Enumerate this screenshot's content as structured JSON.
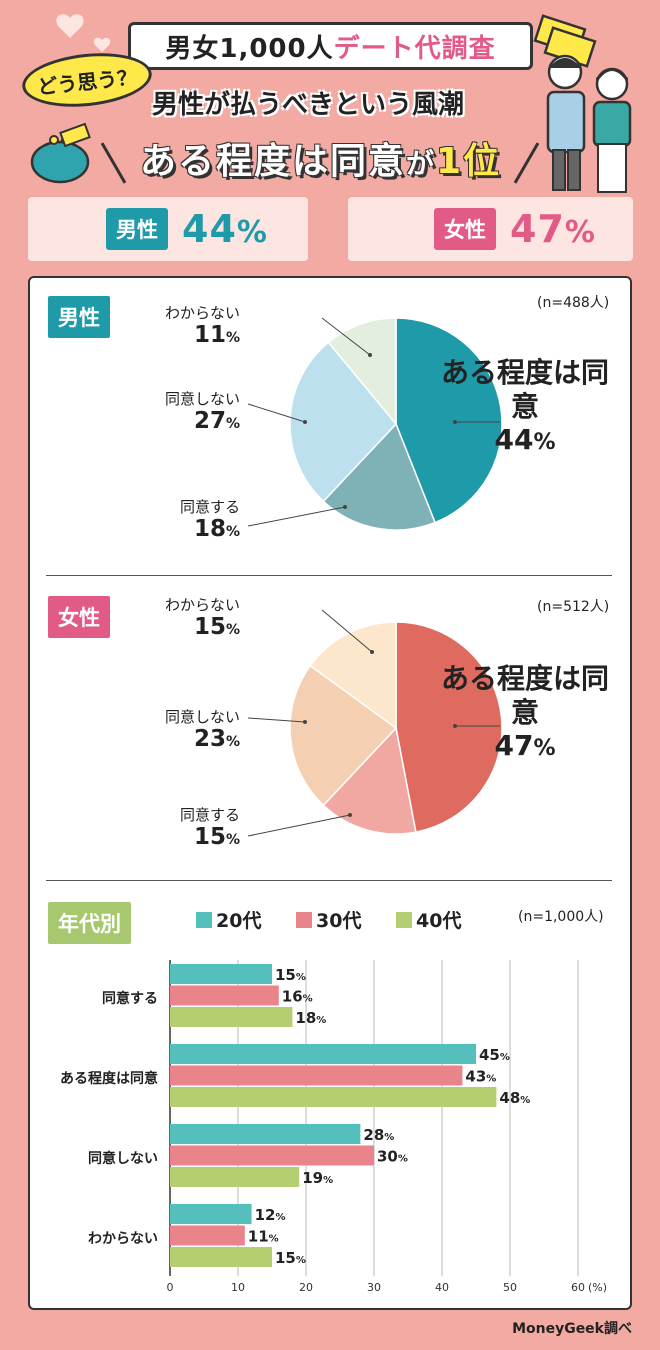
{
  "header": {
    "title_a": "男女1,000人",
    "title_b": "デート代調査",
    "bubble": "どう思う？",
    "subtitle": "男性が払うべきという風潮",
    "headline_a": "ある程度は同意",
    "headline_b": "が",
    "headline_c": "1位"
  },
  "summary": {
    "male_label": "男性",
    "male_pct": "44",
    "male_unit": "%",
    "female_label": "女性",
    "female_pct": "47",
    "female_unit": "%"
  },
  "chart_data": [
    {
      "type": "pie",
      "title": "男性",
      "n_label": "(n=488人)",
      "slices": [
        {
          "label": "ある程度は同意",
          "value": 44,
          "color": "#1e9aa9"
        },
        {
          "label": "同意する",
          "value": 18,
          "color": "#7fb2b7"
        },
        {
          "label": "同意しない",
          "value": 27,
          "color": "#bde0ee"
        },
        {
          "label": "わからない",
          "value": 11,
          "color": "#e4eede"
        }
      ]
    },
    {
      "type": "pie",
      "title": "女性",
      "n_label": "(n=512人)",
      "slices": [
        {
          "label": "ある程度は同意",
          "value": 47,
          "color": "#df6b60"
        },
        {
          "label": "同意する",
          "value": 15,
          "color": "#f2a8a2"
        },
        {
          "label": "同意しない",
          "value": 23,
          "color": "#f5cfb2"
        },
        {
          "label": "わからない",
          "value": 15,
          "color": "#fde7cc"
        }
      ]
    },
    {
      "type": "bar",
      "orientation": "horizontal",
      "title": "年代別",
      "n_label": "(n=1,000人)",
      "categories": [
        "同意する",
        "ある程度は同意",
        "同意しない",
        "わからない"
      ],
      "series": [
        {
          "name": "20代",
          "color": "#55c0bb",
          "values": [
            15,
            45,
            28,
            12
          ]
        },
        {
          "name": "30代",
          "color": "#e9848b",
          "values": [
            16,
            43,
            30,
            11
          ]
        },
        {
          "name": "40代",
          "color": "#b4cf72",
          "values": [
            18,
            48,
            19,
            15
          ]
        }
      ],
      "xlim": [
        0,
        60
      ],
      "xticks": [
        "0",
        "10",
        "20",
        "30",
        "40",
        "50",
        "60"
      ],
      "x_unit": "(%)",
      "value_unit": "%"
    }
  ],
  "footer": "MoneyGeek調べ"
}
